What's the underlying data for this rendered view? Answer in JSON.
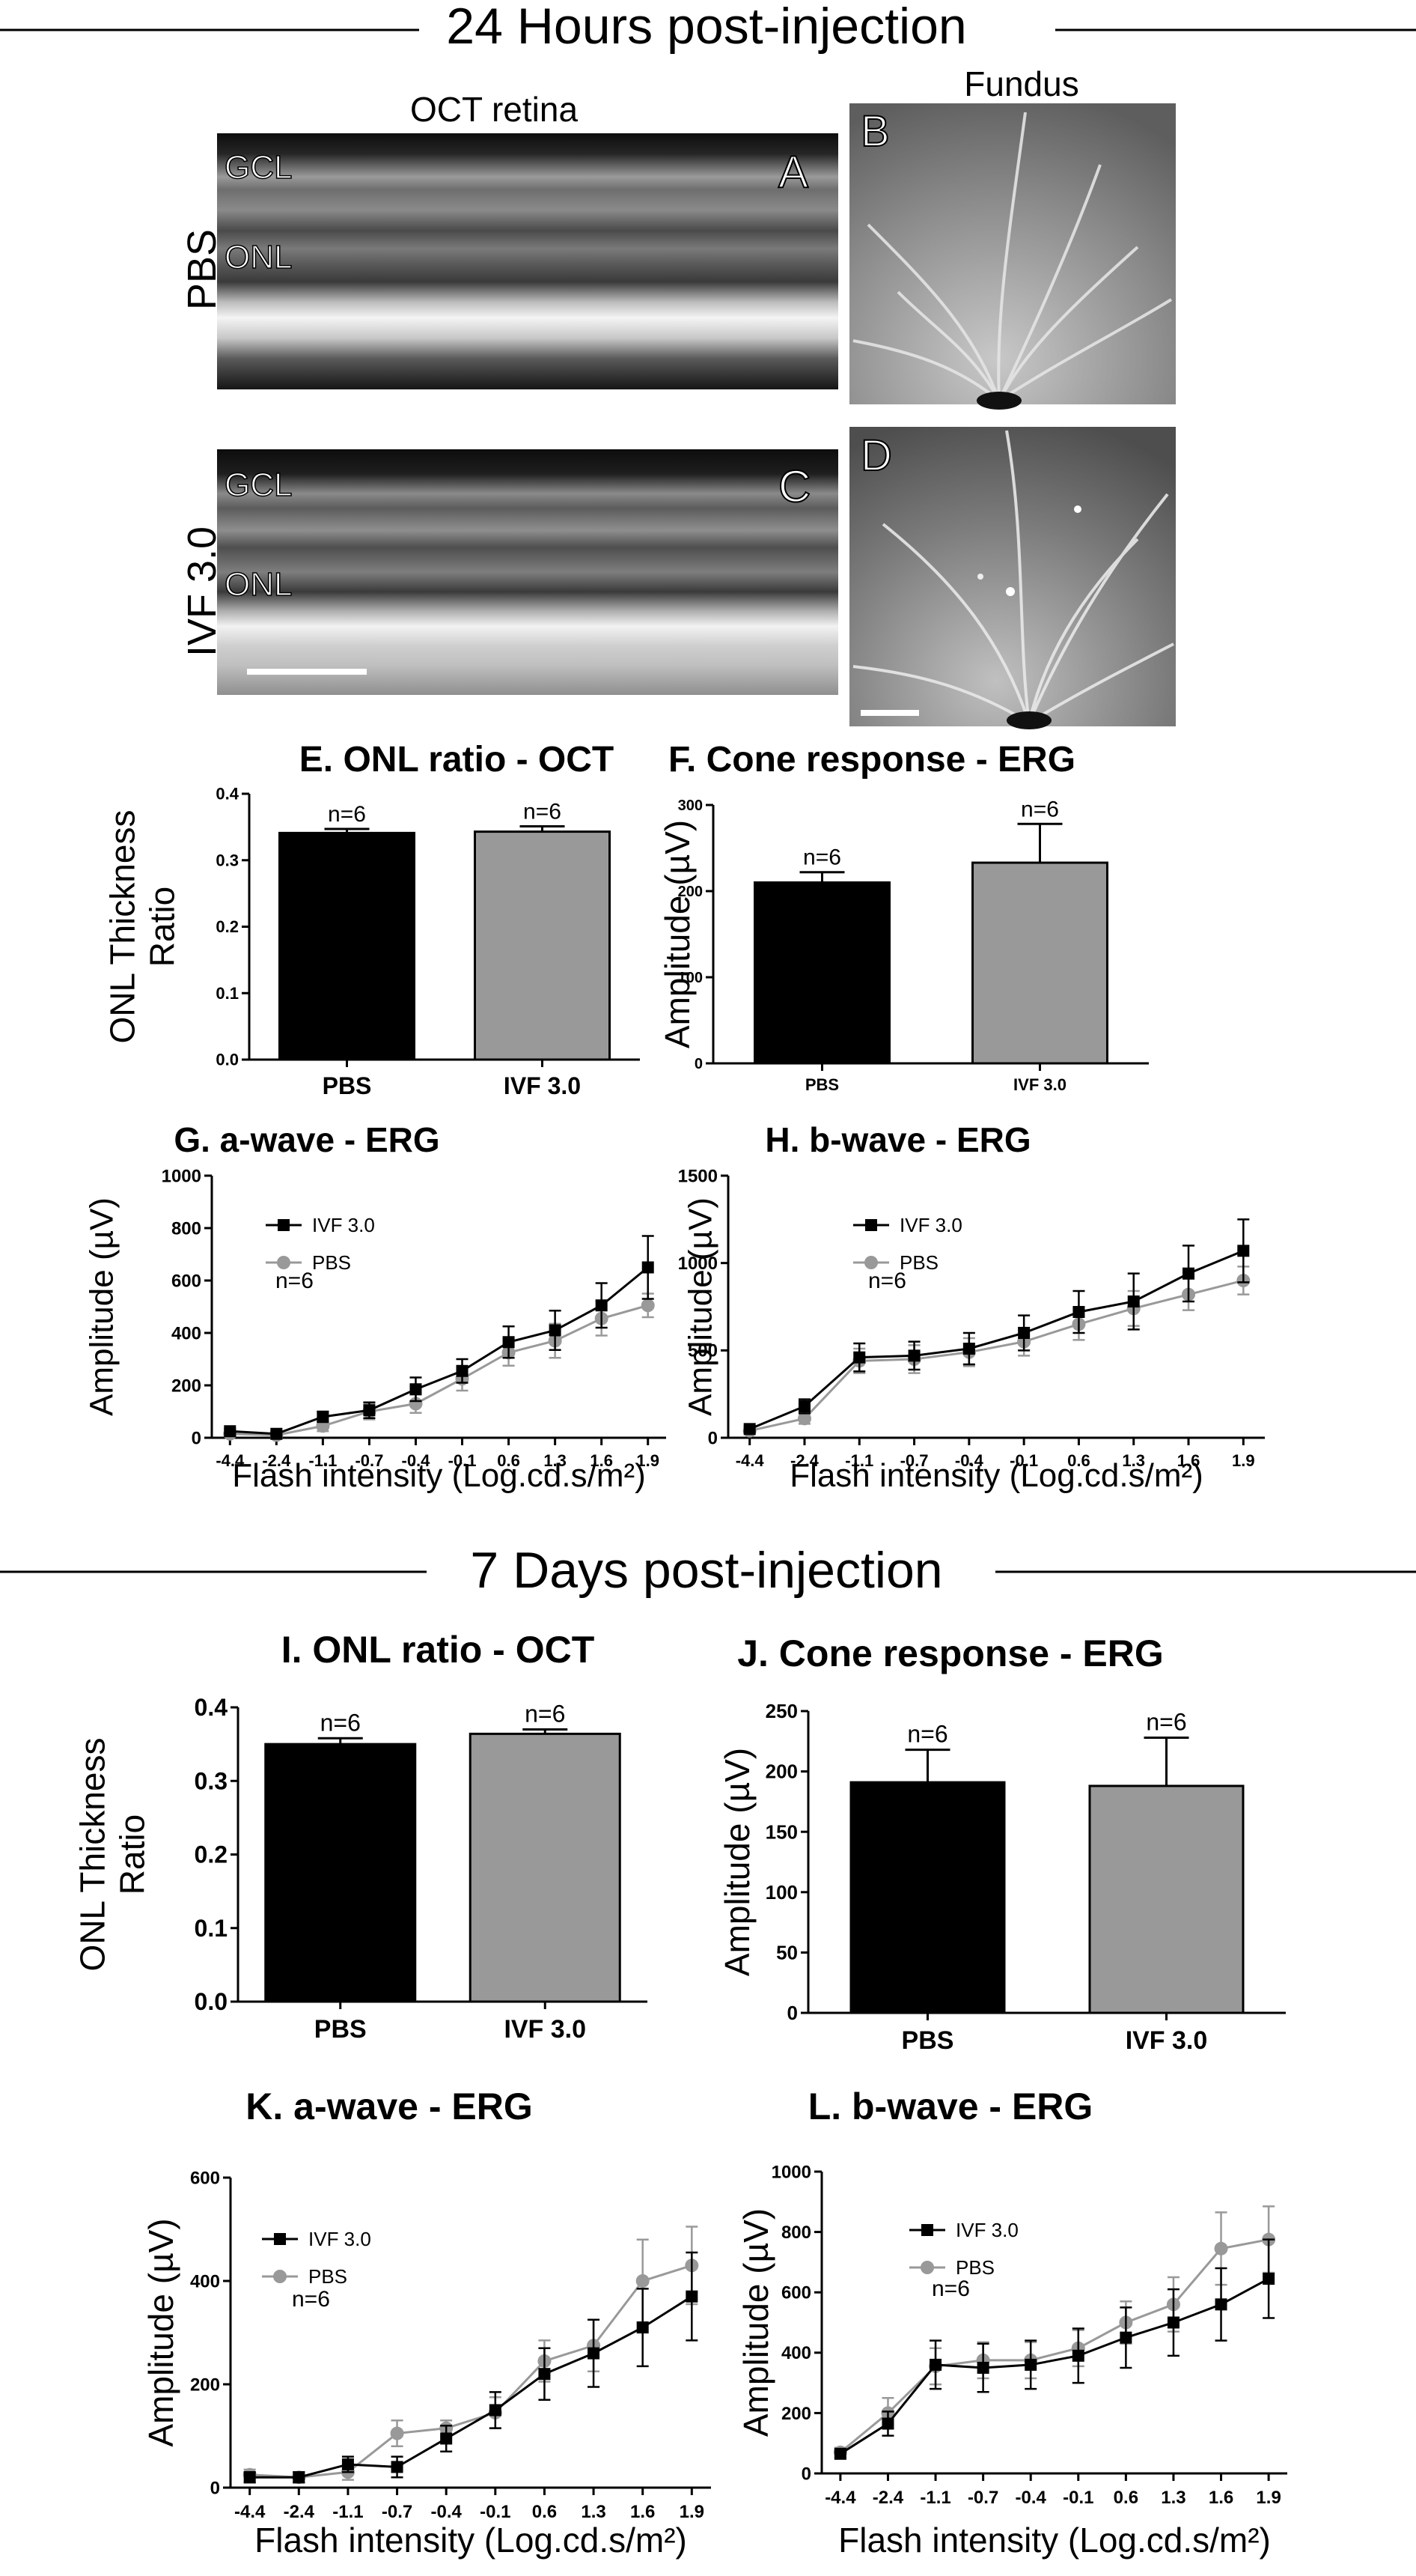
{
  "sections": [
    {
      "title": "24 Hours post-injection"
    },
    {
      "title": "7 Days post-injection"
    }
  ],
  "images": {
    "oct_header": "OCT retina",
    "fundus_header": "Fundus",
    "row_labels": [
      "PBS",
      "IVF 3.0"
    ],
    "layer_gcl": "GCL",
    "layer_onl": "ONL",
    "panels": [
      "A",
      "B",
      "C",
      "D"
    ]
  },
  "chart_data": [
    {
      "id": "E",
      "type": "bar",
      "title": "E. ONL ratio - OCT",
      "ylabel": [
        "ONL Thickness",
        "Ratio"
      ],
      "categories": [
        "PBS",
        "IVF 3.0"
      ],
      "values": [
        0.341,
        0.343
      ],
      "errors": [
        0.006,
        0.008
      ],
      "annotations": [
        "n=6",
        "n=6"
      ],
      "colors": [
        "#000000",
        "#999999"
      ],
      "ylim": [
        0,
        0.4
      ],
      "yticks": [
        "0.0",
        "0.1",
        "0.2",
        "0.3",
        "0.4"
      ]
    },
    {
      "id": "F",
      "type": "bar",
      "title": "F. Cone response - ERG",
      "ylabel": [
        "Amplitude (µV)"
      ],
      "categories": [
        "PBS",
        "IVF 3.0"
      ],
      "values": [
        210,
        233
      ],
      "errors": [
        12,
        45
      ],
      "annotations": [
        "n=6",
        "n=6"
      ],
      "colors": [
        "#000000",
        "#999999"
      ],
      "ylim": [
        0,
        300
      ],
      "yticks": [
        "0",
        "100",
        "200",
        "300"
      ]
    },
    {
      "id": "G",
      "type": "line",
      "title": "G. a-wave - ERG",
      "ylabel": [
        "Amplitude (µV)"
      ],
      "xlabel": "Flash intensity (Log.cd.s/m²)",
      "x": [
        "-4.4",
        "-2.4",
        "-1.1",
        "-0.7",
        "-0.4",
        "-0.1",
        "0.6",
        "1.3",
        "1.6",
        "1.9"
      ],
      "ylim": [
        0,
        1000
      ],
      "yticks": [
        "0",
        "200",
        "400",
        "600",
        "800",
        "1000"
      ],
      "n_label": "n=6",
      "series": [
        {
          "name": "IVF 3.0",
          "color": "#000000",
          "marker": "square",
          "values": [
            25,
            15,
            80,
            105,
            185,
            255,
            365,
            410,
            505,
            650
          ],
          "errors": [
            8,
            8,
            20,
            30,
            45,
            45,
            60,
            75,
            85,
            120
          ]
        },
        {
          "name": "PBS",
          "color": "#999999",
          "marker": "circle",
          "values": [
            15,
            10,
            45,
            100,
            130,
            225,
            325,
            370,
            455,
            505
          ],
          "errors": [
            8,
            8,
            20,
            30,
            35,
            45,
            50,
            65,
            65,
            45
          ]
        }
      ]
    },
    {
      "id": "H",
      "type": "line",
      "title": "H. b-wave - ERG",
      "ylabel": [
        "Amplitude (µV)"
      ],
      "xlabel": "Flash intensity (Log.cd.s/m²)",
      "x": [
        "-4.4",
        "-2.4",
        "-1.1",
        "-0.7",
        "-0.4",
        "-0.1",
        "0.6",
        "1.3",
        "1.6",
        "1.9"
      ],
      "ylim": [
        0,
        1500
      ],
      "yticks": [
        "0",
        "500",
        "1000",
        "1500"
      ],
      "n_label": "n=6",
      "series": [
        {
          "name": "IVF 3.0",
          "color": "#000000",
          "marker": "square",
          "values": [
            50,
            180,
            460,
            470,
            510,
            600,
            720,
            780,
            940,
            1070
          ],
          "errors": [
            15,
            40,
            80,
            80,
            90,
            100,
            120,
            160,
            160,
            180
          ]
        },
        {
          "name": "PBS",
          "color": "#999999",
          "marker": "circle",
          "values": [
            40,
            110,
            440,
            450,
            490,
            550,
            650,
            740,
            820,
            900
          ],
          "errors": [
            15,
            30,
            70,
            80,
            80,
            80,
            90,
            100,
            90,
            80
          ]
        }
      ]
    },
    {
      "id": "I",
      "type": "bar",
      "title": "I. ONL ratio - OCT",
      "ylabel": [
        "ONL Thickness",
        "Ratio"
      ],
      "categories": [
        "PBS",
        "IVF 3.0"
      ],
      "values": [
        0.35,
        0.364
      ],
      "errors": [
        0.008,
        0.006
      ],
      "annotations": [
        "n=6",
        "n=6"
      ],
      "colors": [
        "#000000",
        "#999999"
      ],
      "ylim": [
        0,
        0.4
      ],
      "yticks": [
        "0.0",
        "0.1",
        "0.2",
        "0.3",
        "0.4"
      ]
    },
    {
      "id": "J",
      "type": "bar",
      "title": "J. Cone response - ERG",
      "ylabel": [
        "Amplitude (µV)"
      ],
      "categories": [
        "PBS",
        "IVF 3.0"
      ],
      "values": [
        191,
        188
      ],
      "errors": [
        27,
        40
      ],
      "annotations": [
        "n=6",
        "n=6"
      ],
      "colors": [
        "#000000",
        "#999999"
      ],
      "ylim": [
        0,
        250
      ],
      "yticks": [
        "0",
        "50",
        "100",
        "150",
        "200",
        "250"
      ]
    },
    {
      "id": "K",
      "type": "line",
      "title": "K. a-wave - ERG",
      "ylabel": [
        "Amplitude (µV)"
      ],
      "xlabel": "Flash intensity (Log.cd.s/m²)",
      "x": [
        "-4.4",
        "-2.4",
        "-1.1",
        "-0.7",
        "-0.4",
        "-0.1",
        "0.6",
        "1.3",
        "1.6",
        "1.9"
      ],
      "ylim": [
        0,
        600
      ],
      "yticks": [
        "0",
        "200",
        "400",
        "600"
      ],
      "n_label": "n=6",
      "series": [
        {
          "name": "IVF 3.0",
          "color": "#000000",
          "marker": "square",
          "values": [
            20,
            20,
            45,
            40,
            95,
            150,
            220,
            260,
            310,
            370
          ],
          "errors": [
            10,
            10,
            15,
            20,
            25,
            35,
            50,
            65,
            75,
            85
          ]
        },
        {
          "name": "PBS",
          "color": "#999999",
          "marker": "circle",
          "values": [
            25,
            20,
            30,
            105,
            115,
            145,
            245,
            275,
            400,
            430
          ],
          "errors": [
            10,
            10,
            15,
            25,
            15,
            30,
            40,
            50,
            80,
            75
          ]
        }
      ]
    },
    {
      "id": "L",
      "type": "line",
      "title": "L. b-wave - ERG",
      "ylabel": [
        "Amplitude (µV)"
      ],
      "xlabel": "Flash intensity (Log.cd.s/m²)",
      "x": [
        "-4.4",
        "-2.4",
        "-1.1",
        "-0.7",
        "-0.4",
        "-0.1",
        "0.6",
        "1.3",
        "1.6",
        "1.9"
      ],
      "ylim": [
        0,
        1000
      ],
      "yticks": [
        "0",
        "200",
        "400",
        "600",
        "800",
        "1000"
      ],
      "n_label": "n=6",
      "series": [
        {
          "name": "IVF 3.0",
          "color": "#000000",
          "marker": "square",
          "values": [
            65,
            165,
            360,
            350,
            360,
            390,
            450,
            500,
            560,
            645
          ],
          "errors": [
            15,
            40,
            80,
            80,
            80,
            90,
            100,
            110,
            120,
            130
          ]
        },
        {
          "name": "PBS",
          "color": "#999999",
          "marker": "circle",
          "values": [
            70,
            200,
            355,
            375,
            375,
            415,
            500,
            560,
            745,
            775
          ],
          "errors": [
            15,
            50,
            60,
            60,
            60,
            60,
            70,
            90,
            120,
            110
          ]
        }
      ]
    }
  ]
}
